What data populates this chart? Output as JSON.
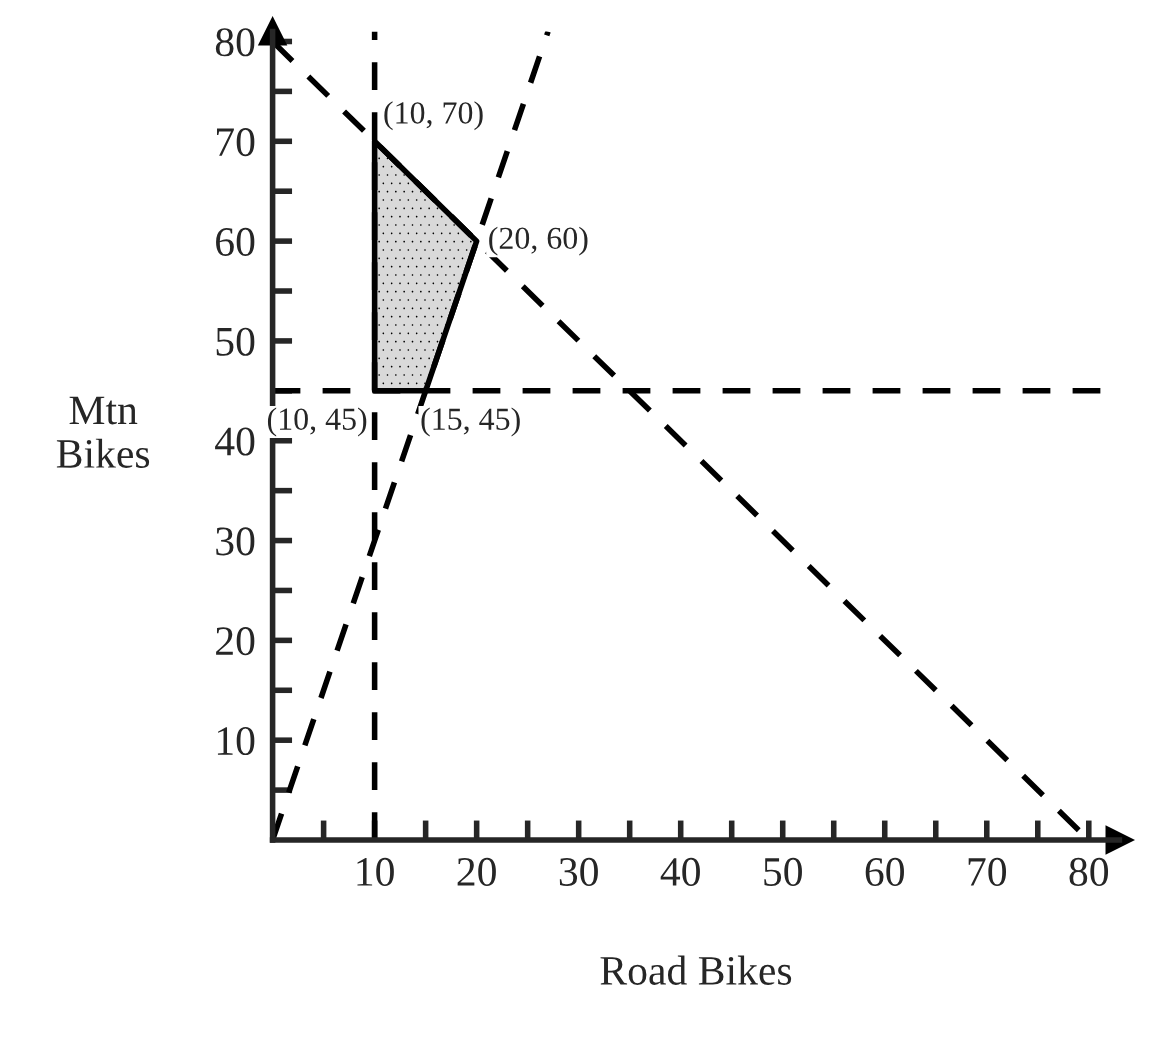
{
  "chart_data": {
    "type": "line",
    "xlabel": "Road Bikes",
    "ylabel": "Mtn\nBikes",
    "xlim": [
      0,
      83
    ],
    "ylim": [
      0,
      81
    ],
    "xticks": [
      {
        "value": 5,
        "label": null
      },
      10,
      {
        "value": 15,
        "label": null
      },
      20,
      {
        "value": 25,
        "label": null
      },
      30,
      {
        "value": 35,
        "label": null
      },
      40,
      {
        "value": 45,
        "label": null
      },
      50,
      {
        "value": 55,
        "label": null
      },
      60,
      {
        "value": 65,
        "label": null
      },
      70,
      {
        "value": 75,
        "label": null
      },
      80
    ],
    "yticks": [
      {
        "value": 5,
        "label": null
      },
      10,
      {
        "value": 15,
        "label": null
      },
      20,
      {
        "value": 25,
        "label": null
      },
      30,
      {
        "value": 35,
        "label": null
      },
      40,
      {
        "value": 45,
        "label": null
      },
      50,
      {
        "value": 55,
        "label": null
      },
      60,
      {
        "value": 65,
        "label": null
      },
      70,
      {
        "value": 75,
        "label": null
      },
      80
    ],
    "series": [
      {
        "type": "area",
        "color": "#d9d9d9",
        "x": [
          10,
          10,
          20,
          15,
          10
        ],
        "values": [
          45,
          70,
          60,
          45,
          45
        ]
      },
      {
        "color": "#000000",
        "line_style": "dashed",
        "x": [
          0,
          80
        ],
        "values": [
          80,
          0
        ]
      },
      {
        "color": "#000000",
        "line_style": "dashed",
        "x": [
          0,
          27
        ],
        "values": [
          0,
          81
        ]
      }
    ],
    "ref_lines": [
      {
        "axis": "x",
        "value": 10,
        "line_style": "dashed",
        "color": "#000000"
      },
      {
        "axis": "y",
        "value": 45,
        "line_style": "dashed",
        "color": "#000000"
      }
    ],
    "annotations": [
      {
        "text": "(10, 70)",
        "x": 10,
        "y": 70
      },
      {
        "text": "(20, 60)",
        "x": 20,
        "y": 60
      },
      {
        "text": "(10, 45)",
        "x": 10,
        "y": 45
      },
      {
        "text": "(15, 45)",
        "x": 15,
        "y": 45
      }
    ],
    "grid": false,
    "legend": false
  }
}
